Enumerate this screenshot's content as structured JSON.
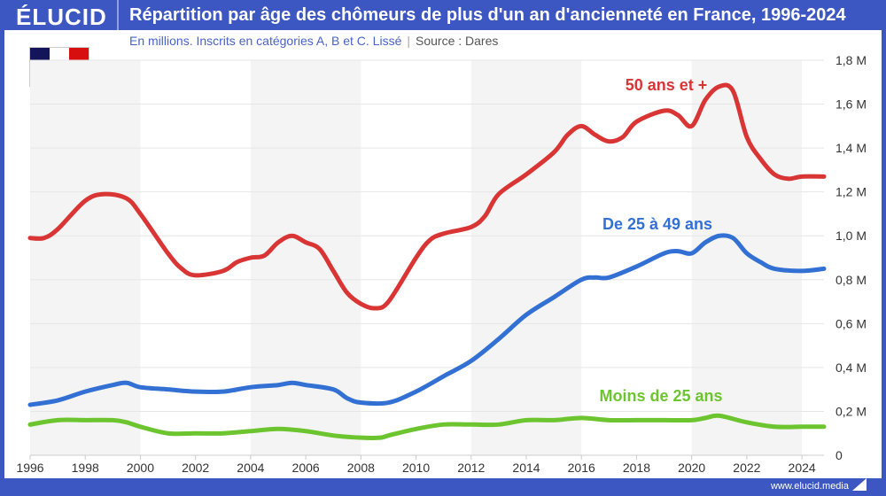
{
  "header": {
    "logo": "ÉLUCID",
    "title": "Répartition par âge des chômeurs de plus d'un an d'ancienneté en France, 1996-2024"
  },
  "subtitle": {
    "text": "En millions. Inscrits en catégories A, B et C. Lissé",
    "source": "Source : Dares"
  },
  "flag": {
    "country": "France",
    "colors": [
      "#14145a",
      "#ffffff",
      "#d80f0f"
    ]
  },
  "footer": {
    "url": "www.elucid.media"
  },
  "colors": {
    "frame": "#3d57c2",
    "band": "#f4f4f4"
  },
  "chart_data": {
    "type": "line",
    "xlim": [
      1996,
      2024.8
    ],
    "ylim": [
      0,
      1.8
    ],
    "x_ticks": [
      "1996",
      "1998",
      "2000",
      "2002",
      "2004",
      "2006",
      "2008",
      "2010",
      "2012",
      "2014",
      "2016",
      "2018",
      "2020",
      "2022",
      "2024"
    ],
    "y_ticks": [
      {
        "v": 0,
        "label": "0"
      },
      {
        "v": 0.2,
        "label": "0,2 M"
      },
      {
        "v": 0.4,
        "label": "0,4 M"
      },
      {
        "v": 0.6,
        "label": "0,6 M"
      },
      {
        "v": 0.8,
        "label": "0,8 M"
      },
      {
        "v": 1.0,
        "label": "1,0 M"
      },
      {
        "v": 1.2,
        "label": "1,2 M"
      },
      {
        "v": 1.4,
        "label": "1,4 M"
      },
      {
        "v": 1.6,
        "label": "1,6 M"
      },
      {
        "v": 1.8,
        "label": "1,8 M"
      }
    ],
    "series": [
      {
        "name": "50 ans et +",
        "color": "#d93535",
        "x": [
          1996,
          1996.5,
          1997,
          1998,
          1998.7,
          1999.5,
          2000,
          2001,
          2001.5,
          2002,
          2003,
          2003.5,
          2004,
          2004.5,
          2005,
          2005.5,
          2006,
          2006.5,
          2007,
          2007.5,
          2008,
          2008.5,
          2009,
          2010,
          2010.5,
          2011,
          2012,
          2012.5,
          2013,
          2014,
          2015,
          2015.5,
          2016,
          2016.5,
          2017,
          2017.5,
          2018,
          2019,
          2019.5,
          2020,
          2020.5,
          2021,
          2021.5,
          2022,
          2022.5,
          2023,
          2023.5,
          2024,
          2024.8
        ],
        "y": [
          0.99,
          0.99,
          1.03,
          1.16,
          1.19,
          1.17,
          1.1,
          0.92,
          0.85,
          0.82,
          0.84,
          0.88,
          0.9,
          0.91,
          0.97,
          1.0,
          0.97,
          0.94,
          0.84,
          0.74,
          0.69,
          0.67,
          0.7,
          0.9,
          0.98,
          1.01,
          1.04,
          1.09,
          1.19,
          1.28,
          1.38,
          1.46,
          1.5,
          1.46,
          1.43,
          1.45,
          1.52,
          1.57,
          1.55,
          1.5,
          1.62,
          1.68,
          1.66,
          1.45,
          1.35,
          1.28,
          1.26,
          1.27,
          1.27
        ]
      },
      {
        "name": "De 25 à 49 ans",
        "color": "#3370d4",
        "x": [
          1996,
          1997,
          1998,
          1999,
          1999.5,
          2000,
          2001,
          2002,
          2003,
          2004,
          2005,
          2005.5,
          2006,
          2007,
          2007.5,
          2008,
          2009,
          2010,
          2011,
          2012,
          2013,
          2014,
          2015,
          2016,
          2016.5,
          2017,
          2018,
          2019,
          2019.5,
          2020,
          2020.5,
          2021,
          2021.5,
          2022,
          2022.5,
          2023,
          2024,
          2024.8
        ],
        "y": [
          0.23,
          0.25,
          0.29,
          0.32,
          0.33,
          0.31,
          0.3,
          0.29,
          0.29,
          0.31,
          0.32,
          0.33,
          0.32,
          0.3,
          0.26,
          0.24,
          0.24,
          0.29,
          0.36,
          0.43,
          0.53,
          0.64,
          0.72,
          0.8,
          0.81,
          0.81,
          0.86,
          0.92,
          0.93,
          0.92,
          0.97,
          1.0,
          0.99,
          0.92,
          0.88,
          0.85,
          0.84,
          0.85
        ]
      },
      {
        "name": "Moins de 25 ans",
        "color": "#6cc52f",
        "x": [
          1996,
          1997,
          1998,
          1999,
          1999.5,
          2000,
          2001,
          2002,
          2003,
          2004,
          2005,
          2006,
          2007,
          2008,
          2008.7,
          2009,
          2010,
          2011,
          2012,
          2013,
          2014,
          2015,
          2016,
          2017,
          2018,
          2019,
          2020,
          2020.5,
          2021,
          2022,
          2023,
          2024,
          2024.8
        ],
        "y": [
          0.14,
          0.16,
          0.16,
          0.16,
          0.15,
          0.13,
          0.1,
          0.1,
          0.1,
          0.11,
          0.12,
          0.11,
          0.09,
          0.08,
          0.08,
          0.09,
          0.12,
          0.14,
          0.14,
          0.14,
          0.16,
          0.16,
          0.17,
          0.16,
          0.16,
          0.16,
          0.16,
          0.17,
          0.18,
          0.15,
          0.13,
          0.13,
          0.13
        ]
      }
    ]
  }
}
